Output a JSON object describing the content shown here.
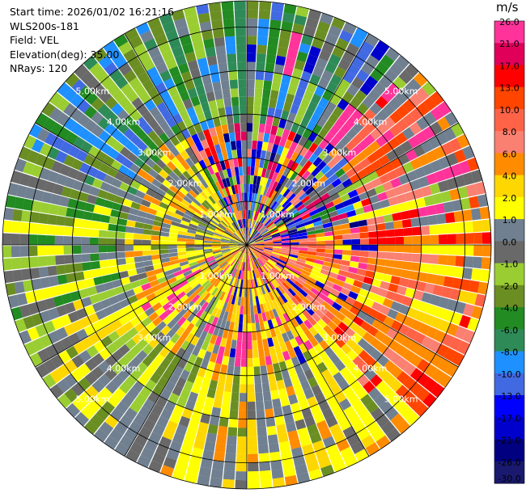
{
  "info": {
    "start_time": "Start time: 2026/01/02 16:21:16",
    "station": "WLS200s-181",
    "field": "Field: VEL",
    "elevation": "Elevation(deg): 35.00",
    "nrays": "NRays: 120"
  },
  "chart_data": {
    "type": "heatmap",
    "subtype": "polar-ppi",
    "field": "VEL",
    "units": "m/s",
    "elevation_deg": 35.0,
    "n_rays": 120,
    "range_rings_km": [
      1.0,
      2.0,
      3.0,
      4.0,
      5.0
    ],
    "range_ring_labels": [
      "1.00km",
      "2.00km",
      "3.00km",
      "4.00km",
      "5.00km"
    ],
    "max_range_km": 5.6,
    "gate_spacing_km": 0.1,
    "azimuth_lines_deg": [
      0,
      30,
      60,
      90,
      120,
      150,
      180,
      210,
      240,
      270,
      300,
      330
    ],
    "colorbar": {
      "label": "m/s",
      "bins": [
        {
          "value": "26.0",
          "color": "#ff3399"
        },
        {
          "value": "21.0",
          "color": "#e0005a"
        },
        {
          "value": "17.0",
          "color": "#ff0000"
        },
        {
          "value": "13.0",
          "color": "#ff4500"
        },
        {
          "value": "10.0",
          "color": "#ff6347"
        },
        {
          "value": "8.0",
          "color": "#fa8072"
        },
        {
          "value": "6.0",
          "color": "#ff8c00"
        },
        {
          "value": "4.0",
          "color": "#ffd700"
        },
        {
          "value": "2.0",
          "color": "#ffff00"
        },
        {
          "value": "1.0",
          "color": "#708090"
        },
        {
          "value": "0.0",
          "color": "#696969"
        },
        {
          "value": "-1.0",
          "color": "#9acd32"
        },
        {
          "value": "-2.0",
          "color": "#6b8e23"
        },
        {
          "value": "-4.0",
          "color": "#228b22"
        },
        {
          "value": "-6.0",
          "color": "#2e8b57"
        },
        {
          "value": "-8.0",
          "color": "#1e90ff"
        },
        {
          "value": "-10.0",
          "color": "#4169e1"
        },
        {
          "value": "-13.0",
          "color": "#0000ff"
        },
        {
          "value": "-17.0",
          "color": "#0000cd"
        },
        {
          "value": "-21.0",
          "color": "#000080"
        },
        {
          "value": "-26.0",
          "color": "#191970"
        },
        {
          "value": "-30.0",
          "color": ""
        }
      ]
    },
    "sectors": [
      {
        "az_from": 0,
        "az_to": 40,
        "near": "mixed",
        "far": "mixed-blue-green-gray"
      },
      {
        "az_from": 40,
        "az_to": 80,
        "near": "mixed",
        "far": "salmon-red-gray"
      },
      {
        "az_from": 80,
        "az_to": 140,
        "near": "salmon-orange",
        "far": "orange-yellow-red"
      },
      {
        "az_from": 140,
        "az_to": 200,
        "near": "orange-yellow",
        "far": "yellow-gray"
      },
      {
        "az_from": 200,
        "az_to": 250,
        "near": "yellow",
        "far": "yellow-gray-green"
      },
      {
        "az_from": 250,
        "az_to": 290,
        "near": "yellow-gray",
        "far": "green-gray"
      },
      {
        "az_from": 290,
        "az_to": 330,
        "near": "yellow-gray",
        "far": "green-gray-blue"
      },
      {
        "az_from": 330,
        "az_to": 360,
        "near": "mixed",
        "far": "green-blue-gray"
      }
    ]
  }
}
